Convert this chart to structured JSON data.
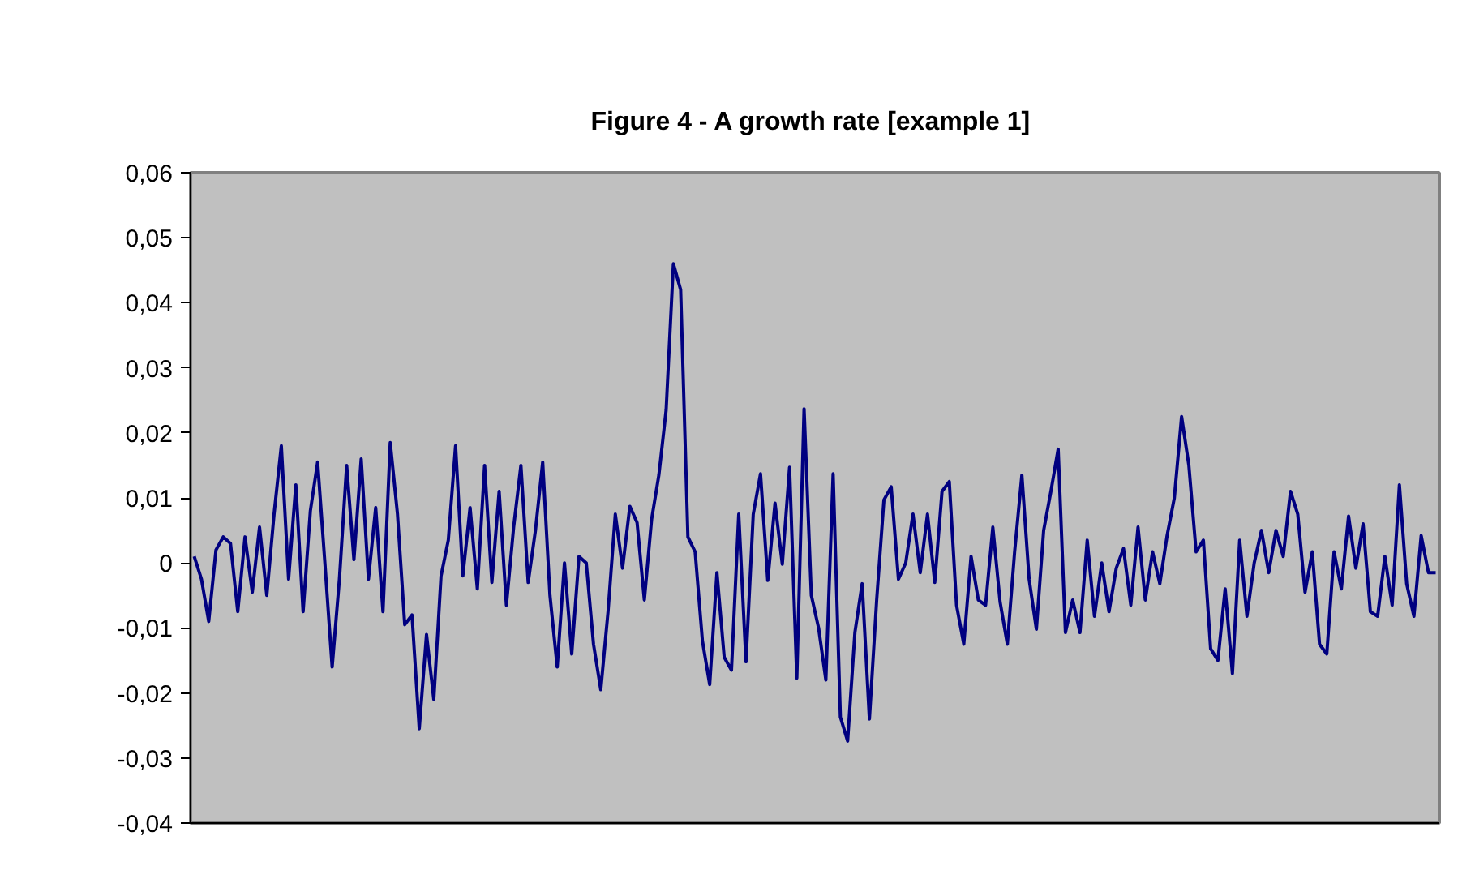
{
  "chart_data": {
    "type": "line",
    "title": "Figure 4 - A growth rate  [example 1]",
    "ylim": [
      -0.04,
      0.06
    ],
    "yticks": [
      {
        "value": -0.04,
        "label": "-0,04"
      },
      {
        "value": -0.03,
        "label": "-0,03"
      },
      {
        "value": -0.02,
        "label": "-0,02"
      },
      {
        "value": -0.01,
        "label": "-0,01"
      },
      {
        "value": 0,
        "label": "0"
      },
      {
        "value": 0.01,
        "label": "0,01"
      },
      {
        "value": 0.02,
        "label": "0,02"
      },
      {
        "value": 0.03,
        "label": "0,03"
      },
      {
        "value": 0.04,
        "label": "0,04"
      },
      {
        "value": 0.05,
        "label": "0,05"
      },
      {
        "value": 0.06,
        "label": "0,06"
      }
    ],
    "grid": false,
    "tick_labels": "y",
    "series": [
      {
        "color": "#000080",
        "values": [
          0.001,
          -0.0025,
          -0.009,
          0.002,
          0.004,
          0.003,
          -0.0075,
          0.004,
          -0.0045,
          0.0055,
          -0.005,
          0.0075,
          0.018,
          -0.0025,
          0.012,
          -0.0075,
          0.008,
          0.0155,
          0.0,
          -0.016,
          -0.0025,
          0.015,
          0.0005,
          0.016,
          -0.0025,
          0.0085,
          -0.0075,
          0.0185,
          0.0075,
          -0.0095,
          -0.008,
          -0.0255,
          -0.011,
          -0.021,
          -0.002,
          0.0035,
          0.018,
          -0.002,
          0.0085,
          -0.004,
          0.015,
          -0.003,
          0.011,
          -0.0065,
          0.0055,
          0.015,
          -0.003,
          0.005,
          0.0155,
          -0.005,
          -0.016,
          0.0,
          -0.014,
          0.001,
          0.0,
          -0.0125,
          -0.0195,
          -0.0075,
          0.0075,
          -0.0008,
          0.0087,
          0.0062,
          -0.0057,
          0.0067,
          0.0135,
          0.0235,
          0.046,
          0.042,
          0.004,
          0.0017,
          -0.012,
          -0.0187,
          -0.0015,
          -0.0145,
          -0.0165,
          0.0075,
          -0.0152,
          0.0075,
          0.0137,
          -0.0027,
          0.0092,
          -0.0002,
          0.0147,
          -0.0177,
          0.0237,
          -0.005,
          -0.01,
          -0.018,
          0.0137,
          -0.0237,
          -0.0274,
          -0.0107,
          -0.0032,
          -0.024,
          -0.0057,
          0.0097,
          0.0117,
          -0.0025,
          0.0,
          0.0075,
          -0.0015,
          0.0075,
          -0.003,
          0.011,
          0.0125,
          -0.0065,
          -0.0125,
          0.001,
          -0.0057,
          -0.0065,
          0.0055,
          -0.006,
          -0.0125,
          0.0017,
          0.0135,
          -0.0025,
          -0.0102,
          0.005,
          0.011,
          0.0175,
          -0.0107,
          -0.0057,
          -0.0107,
          0.0035,
          -0.0082,
          0.0,
          -0.0075,
          -0.0008,
          0.0022,
          -0.0065,
          0.0055,
          -0.0057,
          0.0017,
          -0.0032,
          0.0042,
          0.01,
          0.0225,
          0.015,
          0.0017,
          0.0035,
          -0.0132,
          -0.015,
          -0.004,
          -0.017,
          0.0035,
          -0.0082,
          0.0,
          0.005,
          -0.0015,
          0.005,
          0.001,
          0.011,
          0.0075,
          -0.0045,
          0.0017,
          -0.0125,
          -0.014,
          0.0017,
          -0.004,
          0.0072,
          -0.0008,
          0.006,
          -0.0075,
          -0.0082,
          0.001,
          -0.0065,
          0.012,
          -0.0032,
          -0.0082,
          0.0042,
          -0.0015,
          -0.0015
        ]
      }
    ]
  }
}
